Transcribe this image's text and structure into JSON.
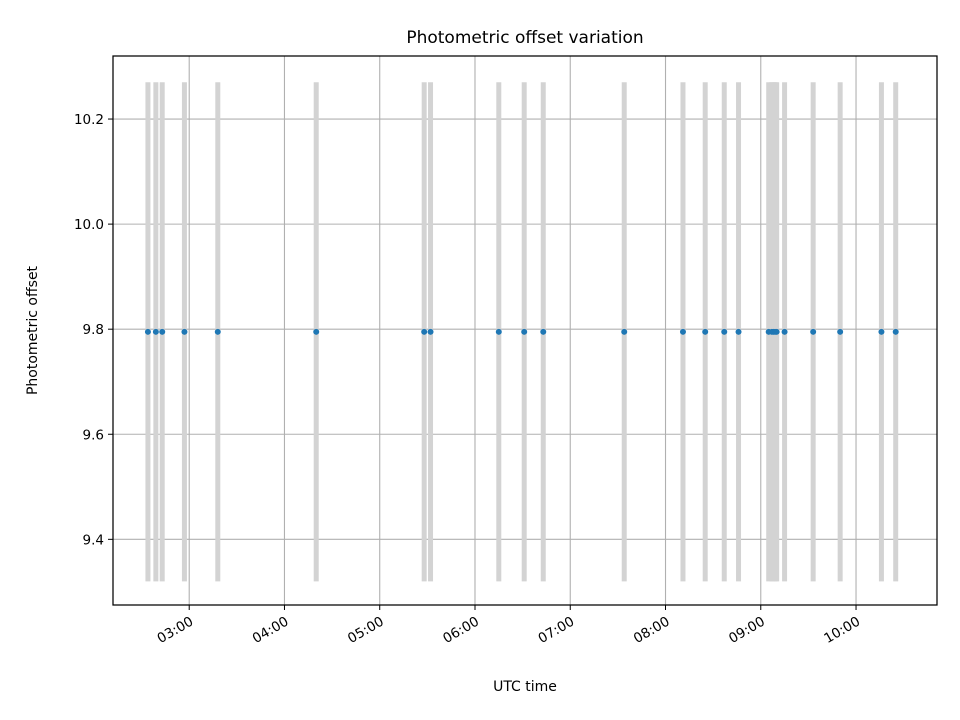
{
  "chart_data": {
    "type": "scatter",
    "title": "Photometric offset variation",
    "xlabel": "UTC time",
    "ylabel": "Photometric offset",
    "x_tick_labels": [
      "03:00",
      "04:00",
      "05:00",
      "06:00",
      "07:00",
      "08:00",
      "09:00",
      "10:00"
    ],
    "x_ticks": [
      "03:00",
      "04:00",
      "05:00",
      "06:00",
      "07:00",
      "08:00",
      "09:00",
      "10:00"
    ],
    "y_ticks": [
      9.4,
      9.6,
      9.8,
      10.0,
      10.2
    ],
    "y_tick_labels": [
      "9.4",
      "9.6",
      "9.8",
      "10.0",
      "10.2"
    ],
    "xlim": [
      "02:12",
      "10:51"
    ],
    "ylim": [
      9.275,
      10.32
    ],
    "grid": true,
    "point_color": "#1f77b4",
    "errorbar_color": "#d3d3d3",
    "points": [
      {
        "x": "02:34",
        "y": 9.795,
        "err_low": 9.32,
        "err_high": 10.27
      },
      {
        "x": "02:39",
        "y": 9.795,
        "err_low": 9.32,
        "err_high": 10.27
      },
      {
        "x": "02:43",
        "y": 9.795,
        "err_low": 9.32,
        "err_high": 10.27
      },
      {
        "x": "02:57",
        "y": 9.795,
        "err_low": 9.32,
        "err_high": 10.27
      },
      {
        "x": "03:18",
        "y": 9.795,
        "err_low": 9.32,
        "err_high": 10.27
      },
      {
        "x": "04:20",
        "y": 9.795,
        "err_low": 9.32,
        "err_high": 10.27
      },
      {
        "x": "05:28",
        "y": 9.795,
        "err_low": 9.32,
        "err_high": 10.27
      },
      {
        "x": "05:32",
        "y": 9.795,
        "err_low": 9.32,
        "err_high": 10.27
      },
      {
        "x": "06:15",
        "y": 9.795,
        "err_low": 9.32,
        "err_high": 10.27
      },
      {
        "x": "06:31",
        "y": 9.795,
        "err_low": 9.32,
        "err_high": 10.27
      },
      {
        "x": "06:43",
        "y": 9.795,
        "err_low": 9.32,
        "err_high": 10.27
      },
      {
        "x": "07:34",
        "y": 9.795,
        "err_low": 9.32,
        "err_high": 10.27
      },
      {
        "x": "08:11",
        "y": 9.795,
        "err_low": 9.32,
        "err_high": 10.27
      },
      {
        "x": "08:25",
        "y": 9.795,
        "err_low": 9.32,
        "err_high": 10.27
      },
      {
        "x": "08:37",
        "y": 9.795,
        "err_low": 9.32,
        "err_high": 10.27
      },
      {
        "x": "08:46",
        "y": 9.795,
        "err_low": 9.32,
        "err_high": 10.27
      },
      {
        "x": "09:05",
        "y": 9.795,
        "err_low": 9.32,
        "err_high": 10.27
      },
      {
        "x": "09:07",
        "y": 9.795,
        "err_low": 9.32,
        "err_high": 10.27
      },
      {
        "x": "09:08",
        "y": 9.795,
        "err_low": 9.32,
        "err_high": 10.27
      },
      {
        "x": "09:09",
        "y": 9.795,
        "err_low": 9.32,
        "err_high": 10.27
      },
      {
        "x": "09:10",
        "y": 9.795,
        "err_low": 9.32,
        "err_high": 10.27
      },
      {
        "x": "09:15",
        "y": 9.795,
        "err_low": 9.32,
        "err_high": 10.27
      },
      {
        "x": "09:33",
        "y": 9.795,
        "err_low": 9.32,
        "err_high": 10.27
      },
      {
        "x": "09:50",
        "y": 9.795,
        "err_low": 9.32,
        "err_high": 10.27
      },
      {
        "x": "10:16",
        "y": 9.795,
        "err_low": 9.32,
        "err_high": 10.27
      },
      {
        "x": "10:25",
        "y": 9.795,
        "err_low": 9.32,
        "err_high": 10.27
      }
    ]
  }
}
